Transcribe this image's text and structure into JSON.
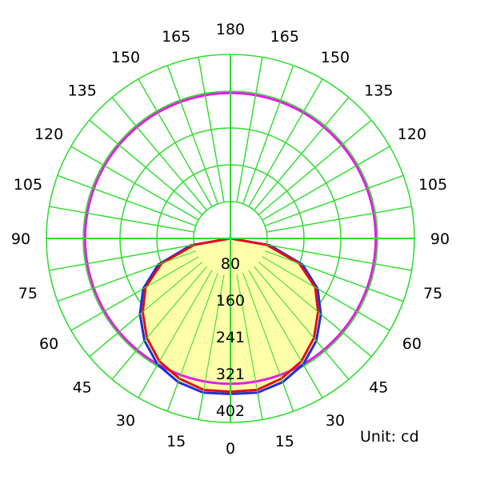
{
  "chart_data": {
    "type": "polar",
    "angle_labels": {
      "left": [
        "0",
        "15",
        "30",
        "45",
        "60",
        "75",
        "90",
        "105",
        "120",
        "135",
        "150",
        "165",
        "180"
      ],
      "right": [
        "0",
        "15",
        "30",
        "45",
        "60",
        "75",
        "90",
        "105",
        "120",
        "135",
        "150",
        "165",
        "180"
      ]
    },
    "radial_ticks": [
      80,
      160,
      241,
      321,
      402
    ],
    "rmax": 402,
    "unit_label": "Unit: cd",
    "colors": {
      "grid": "#33dd33",
      "series_c0_180": "#1f2fe0",
      "series_c90_270": "#e01010",
      "reference_circle": "#dd22dd",
      "fill": "#ffffaa"
    },
    "series": [
      {
        "color_key": "series_c0_180",
        "points": [
          {
            "angle": 0,
            "value": 340
          },
          {
            "angle": 10,
            "value": 342
          },
          {
            "angle": 20,
            "value": 334
          },
          {
            "angle": 30,
            "value": 318
          },
          {
            "angle": 40,
            "value": 292
          },
          {
            "angle": 50,
            "value": 258
          },
          {
            "angle": 60,
            "value": 220
          },
          {
            "angle": 70,
            "value": 168
          },
          {
            "angle": 80,
            "value": 88
          },
          {
            "angle": 90,
            "value": 0
          }
        ]
      },
      {
        "color_key": "series_c90_270",
        "points": [
          {
            "angle": 0,
            "value": 335
          },
          {
            "angle": 10,
            "value": 336
          },
          {
            "angle": 20,
            "value": 326
          },
          {
            "angle": 30,
            "value": 310
          },
          {
            "angle": 40,
            "value": 284
          },
          {
            "angle": 50,
            "value": 250
          },
          {
            "angle": 60,
            "value": 214
          },
          {
            "angle": 70,
            "value": 160
          },
          {
            "angle": 80,
            "value": 80
          },
          {
            "angle": 90,
            "value": 0
          }
        ]
      }
    ],
    "reference_circle_value": 402
  }
}
